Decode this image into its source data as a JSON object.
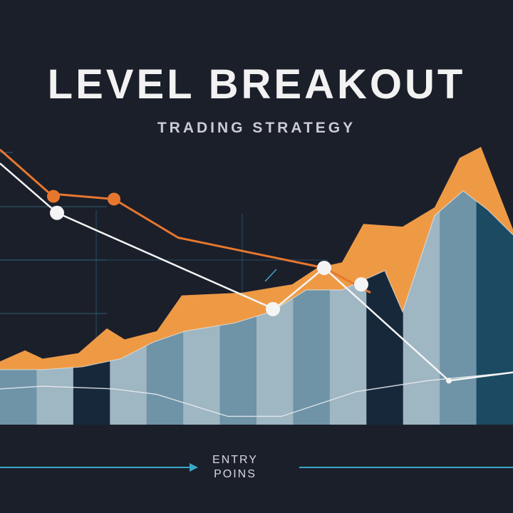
{
  "title": "LEVEL BREAKOUT",
  "subtitle": "TRADING STRATEGY",
  "caption": {
    "line1": "ENTRY",
    "line2": "POINS"
  },
  "colors": {
    "background": "#1b1f2a",
    "orange_light": "#ee9a45",
    "orange_dark": "#e07a35",
    "orange_line": "#e8772e",
    "steel_light": "#9fb6c3",
    "steel_mid": "#6f93a7",
    "steel_dark": "#16283a",
    "steel_teal": "#1c4a63",
    "white": "#f4f4f4",
    "accent_line": "#3aa7c9",
    "grid": "#2f6f86"
  },
  "chart_data": {
    "type": "area",
    "x_range": [
      0,
      720
    ],
    "y_range": [
      0,
      100
    ],
    "grid": true,
    "series": [
      {
        "values": [
          [
            0,
            23
          ],
          [
            35,
            27
          ],
          [
            60,
            24
          ],
          [
            110,
            26
          ],
          [
            150,
            35
          ],
          [
            175,
            31
          ],
          [
            220,
            34
          ],
          [
            255,
            47
          ],
          [
            340,
            48
          ],
          [
            410,
            51
          ],
          [
            445,
            57
          ],
          [
            480,
            59
          ],
          [
            510,
            73
          ],
          [
            565,
            72
          ],
          [
            610,
            79
          ],
          [
            645,
            97
          ],
          [
            675,
            101
          ],
          [
            720,
            71
          ]
        ]
      },
      {
        "values": [
          [
            0,
            20
          ],
          [
            60,
            20
          ],
          [
            115,
            21
          ],
          [
            170,
            24
          ],
          [
            215,
            30
          ],
          [
            260,
            34
          ],
          [
            330,
            37
          ],
          [
            380,
            41
          ],
          [
            430,
            49
          ],
          [
            480,
            49
          ],
          [
            540,
            56
          ],
          [
            565,
            41
          ],
          [
            610,
            76
          ],
          [
            650,
            85
          ],
          [
            685,
            78
          ],
          [
            720,
            69
          ]
        ]
      },
      {
        "values": [
          [
            0,
            100
          ],
          [
            70,
            84
          ],
          [
            160,
            82
          ],
          [
            250,
            68
          ],
          [
            455,
            57
          ],
          [
            520,
            48
          ]
        ]
      },
      {
        "values": [
          [
            0,
            95
          ],
          [
            80,
            77
          ],
          [
            385,
            42
          ],
          [
            455,
            57
          ],
          [
            630,
            16
          ],
          [
            720,
            19
          ]
        ]
      },
      {
        "values": [
          [
            0,
            13
          ],
          [
            60,
            14
          ],
          [
            160,
            13
          ],
          [
            220,
            11
          ],
          [
            320,
            3
          ],
          [
            395,
            3
          ],
          [
            500,
            12
          ],
          [
            600,
            16
          ],
          [
            720,
            19
          ]
        ]
      }
    ],
    "markers": [
      {
        "series": 2,
        "x": 75,
        "y": 83
      },
      {
        "series": 2,
        "x": 160,
        "y": 82
      },
      {
        "series": 3,
        "x": 80,
        "y": 77
      },
      {
        "series": 3,
        "x": 383,
        "y": 42
      },
      {
        "series": 3,
        "x": 455,
        "y": 57
      },
      {
        "series": 3,
        "x": 507,
        "y": 51
      },
      {
        "series": 3,
        "x": 630,
        "y": 16
      }
    ]
  }
}
